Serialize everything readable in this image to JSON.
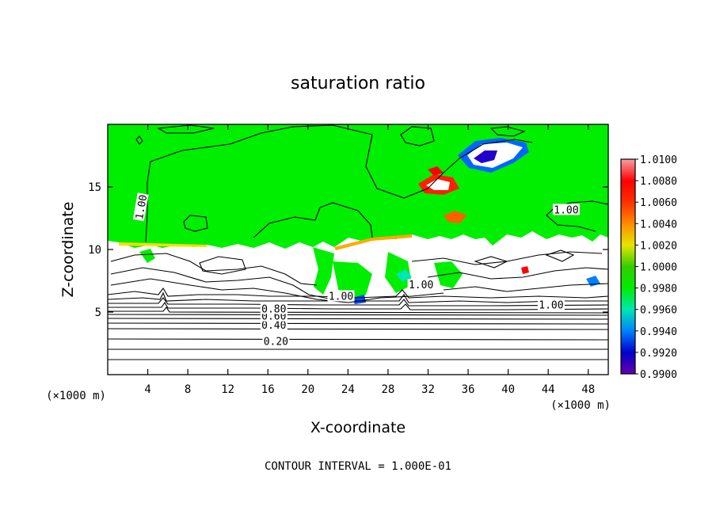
{
  "chart_data": {
    "type": "heatmap",
    "title": "saturation ratio",
    "xlabel": "X-coordinate",
    "ylabel": "Z-coordinate",
    "x_unit": "(×1000 m)",
    "x_unit_right": "(×1000 m)",
    "xlim": [
      0,
      50
    ],
    "ylim": [
      0,
      20
    ],
    "x_ticks": [
      4,
      8,
      12,
      16,
      20,
      24,
      28,
      32,
      36,
      40,
      44,
      48
    ],
    "y_ticks": [
      5,
      10,
      15
    ],
    "note": "CONTOUR INTERVAL = 1.000E-01",
    "colorbar": {
      "levels": [
        "1.0100",
        "1.0080",
        "1.0060",
        "1.0040",
        "1.0020",
        "1.0000",
        "0.9980",
        "0.9960",
        "0.9940",
        "0.9920",
        "0.9900"
      ],
      "colors": [
        "#f4a0a0",
        "#ff0000",
        "#ff3000",
        "#ff8c00",
        "#e6e600",
        "#33cc00",
        "#00ee00",
        "#00e6b4",
        "#0080ff",
        "#0000cc",
        "#6600aa"
      ]
    },
    "contour_labels": [
      {
        "text": "0.20",
        "x": 16.8,
        "z": 2.7
      },
      {
        "text": "0.40",
        "x": 16.6,
        "z": 4.0
      },
      {
        "text": "0.60",
        "x": 16.6,
        "z": 4.7
      },
      {
        "text": "0.80",
        "x": 16.6,
        "z": 5.3
      },
      {
        "text": "1.00",
        "x": 3.3,
        "z": 13.4
      },
      {
        "text": "1.00",
        "x": 45.8,
        "z": 13.2
      },
      {
        "text": "1.00",
        "x": 31.3,
        "z": 7.2
      },
      {
        "text": "1.00",
        "x": 23.3,
        "z": 6.3
      },
      {
        "text": "1.00",
        "x": 44.3,
        "z": 5.6
      }
    ]
  }
}
